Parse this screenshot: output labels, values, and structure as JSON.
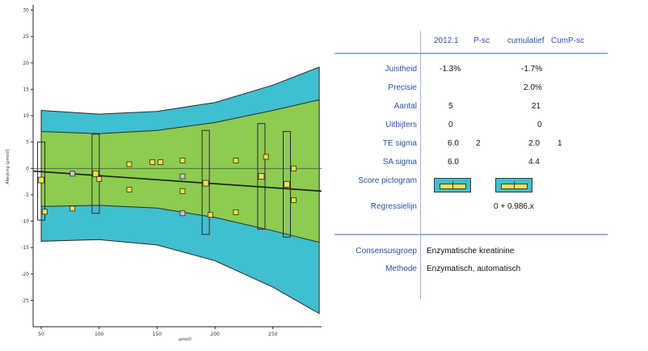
{
  "chart_data": {
    "type": "scatter",
    "title": "",
    "xlabel": "µmol/l",
    "ylabel": "Afwijking (µmol/l)",
    "xlim": [
      43,
      292
    ],
    "ylim": [
      -30,
      31
    ],
    "x_ticks": [
      50,
      100,
      150,
      200,
      250
    ],
    "y_ticks": [
      30,
      25,
      20,
      15,
      10,
      5,
      0,
      -5,
      -10,
      -15,
      -20,
      -25
    ],
    "grid": false,
    "colors": {
      "outer_band": "#3fbfd0",
      "inner_band": "#8ccc4f",
      "marker_fill": "#f2e04a",
      "marker_gray": "#c9c9c9",
      "line": "#1a1a1a"
    },
    "outer_band": {
      "x": [
        50,
        100,
        150,
        200,
        250,
        290
      ],
      "upper": [
        11,
        10.3,
        10.8,
        12.5,
        15.8,
        19.2
      ],
      "lower": [
        -13.8,
        -13.5,
        -14.5,
        -17.5,
        -22.5,
        -27.5
      ]
    },
    "inner_band": {
      "x": [
        50,
        100,
        150,
        200,
        250,
        290
      ],
      "upper": [
        7,
        6.6,
        7.2,
        8.7,
        11.0,
        13.0
      ],
      "lower": [
        -7.2,
        -7.0,
        -7.5,
        -9.3,
        -11.8,
        -14.0
      ]
    },
    "regression_line": {
      "x": [
        43,
        292
      ],
      "y": [
        -0.5,
        -4.3
      ]
    },
    "ranges": [
      {
        "x": 50,
        "low": -9.8,
        "high": 5.0,
        "marker_y": -2.2,
        "gray": false
      },
      {
        "x": 97,
        "low": -8.5,
        "high": 6.5,
        "marker_y": -1.0,
        "gray": false
      },
      {
        "x": 192,
        "low": -12.5,
        "high": 7.2,
        "marker_y": -2.8,
        "gray": false
      },
      {
        "x": 240,
        "low": -11.5,
        "high": 8.5,
        "marker_y": -1.5,
        "gray": false
      },
      {
        "x": 262,
        "low": -13.0,
        "high": 7.0,
        "marker_y": -3.0,
        "gray": false
      }
    ],
    "points": [
      {
        "x": 53,
        "y": -8.2,
        "gray": false
      },
      {
        "x": 77,
        "y": -1.0,
        "gray": true
      },
      {
        "x": 77,
        "y": -7.6,
        "gray": false
      },
      {
        "x": 100,
        "y": -2.0,
        "gray": false
      },
      {
        "x": 126,
        "y": 0.8,
        "gray": false
      },
      {
        "x": 126,
        "y": -4.0,
        "gray": false
      },
      {
        "x": 146,
        "y": 1.2,
        "gray": false
      },
      {
        "x": 153,
        "y": 1.2,
        "gray": false
      },
      {
        "x": 172,
        "y": 1.5,
        "gray": false
      },
      {
        "x": 172,
        "y": -1.5,
        "gray": true
      },
      {
        "x": 172,
        "y": -4.3,
        "gray": false
      },
      {
        "x": 172,
        "y": -8.5,
        "gray": true
      },
      {
        "x": 196,
        "y": -8.8,
        "gray": false
      },
      {
        "x": 218,
        "y": 1.5,
        "gray": false
      },
      {
        "x": 218,
        "y": -8.3,
        "gray": false
      },
      {
        "x": 244,
        "y": 2.2,
        "gray": false
      },
      {
        "x": 268,
        "y": 0.0,
        "gray": false
      },
      {
        "x": 268,
        "y": -6.0,
        "gray": false
      }
    ]
  },
  "report": {
    "headers": {
      "period": "2012.1",
      "p_score": "P-sc",
      "cumulative": "cumulatief",
      "cum_p_score": "CumP-sc"
    },
    "rows": [
      {
        "label": "Juistheid",
        "value": "-1.3%",
        "score": "",
        "cumulative": "-1.7%",
        "cum_score": ""
      },
      {
        "label": "Precisie",
        "value": "",
        "score": "",
        "cumulative": "2.0%",
        "cum_score": ""
      },
      {
        "label": "Aantal",
        "value": "5",
        "score": "",
        "cumulative": "21",
        "cum_score": ""
      },
      {
        "label": "Uitbijters",
        "value": "0",
        "score": "",
        "cumulative": "0",
        "cum_score": ""
      },
      {
        "label": "TE sigma",
        "value": "6.0",
        "score": "2",
        "cumulative": "2.0",
        "cum_score": "1"
      },
      {
        "label": "SA sigma",
        "value": "6.0",
        "score": "",
        "cumulative": "4.4",
        "cum_score": ""
      }
    ],
    "pictogram_label": "Score pictogram",
    "regression_label": "Regressielijn",
    "regression_value": "0 + 0.986.x",
    "group_label": "Consensusgroep",
    "group_value": "Enzymatische kreatinine",
    "method_label": "Methode",
    "method_value": "Enzymatisch, automatisch"
  }
}
